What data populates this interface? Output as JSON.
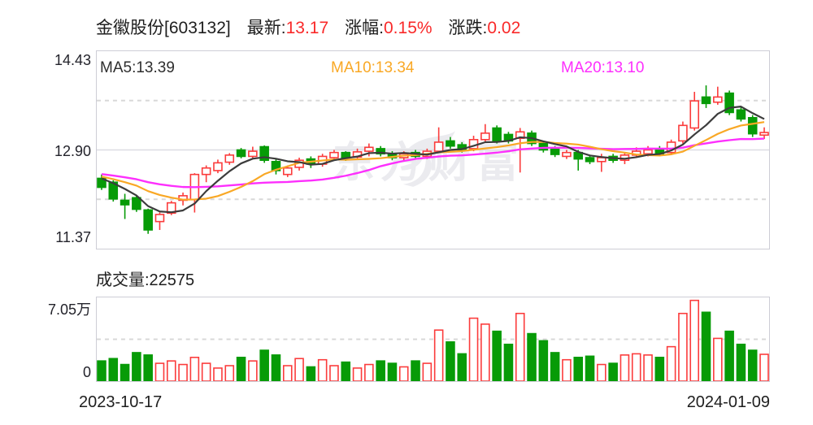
{
  "header": {
    "stock_name": "金徽股份[603132]",
    "latest_label": "最新:",
    "latest_value": "13.17",
    "change_pct_label": "涨幅:",
    "change_pct_value": "0.15%",
    "change_label": "涨跌:",
    "change_value": "0.02"
  },
  "legend": {
    "ma5": "MA5:13.39",
    "ma10": "MA10:13.34",
    "ma20": "MA20:13.10"
  },
  "price_axis": {
    "top": "14.43",
    "mid": "12.90",
    "bottom": "11.37"
  },
  "volume_title": "成交量:22575",
  "volume_axis": {
    "top": "7.05万",
    "bottom": "0"
  },
  "x_axis": {
    "start": "2023-10-17",
    "end": "2024-01-09"
  },
  "watermark": "东方财富",
  "colors": {
    "up": "#fb3b3b",
    "down": "#079b07",
    "ma5": "#3c3c3c",
    "ma10": "#f9a825",
    "ma20": "#fd2ffd",
    "grid": "#d8d8d8",
    "mid_line": "#dddde2",
    "accent_red": "#f92929"
  },
  "chart_data": {
    "type": "candlestick+volume",
    "title": "金徽股份[603132]",
    "latest": 13.17,
    "change_pct": 0.15,
    "change": 0.02,
    "ma_labels": {
      "ma5": 13.39,
      "ma10": 13.34,
      "ma20": 13.1
    },
    "price_range": [
      11.37,
      14.43
    ],
    "price_ticks": [
      14.43,
      12.9,
      11.37
    ],
    "volume_max": 70500,
    "last_volume": 22575,
    "dates": [
      "2023-10-17",
      "2024-01-09"
    ],
    "grid": "dashed-quarters",
    "ma_prehistory": [
      12.6,
      12.59,
      12.58,
      12.57,
      12.56,
      12.56,
      12.55,
      12.55,
      12.54,
      12.54,
      12.53,
      12.52,
      12.52,
      12.51,
      12.5,
      12.5,
      12.5,
      12.49,
      12.48
    ],
    "candles": [
      [
        12.46,
        12.32,
        12.52,
        12.28,
        17000
      ],
      [
        12.4,
        12.14,
        12.43,
        12.1,
        19000
      ],
      [
        12.12,
        12.05,
        12.22,
        11.83,
        14000
      ],
      [
        12.16,
        11.98,
        12.19,
        11.94,
        24000
      ],
      [
        11.97,
        11.66,
        11.99,
        11.6,
        22000
      ],
      [
        11.79,
        11.9,
        11.93,
        11.66,
        15000
      ],
      [
        11.92,
        12.08,
        12.11,
        11.89,
        17000
      ],
      [
        12.12,
        12.19,
        12.24,
        12.04,
        14000
      ],
      [
        12.13,
        12.52,
        12.54,
        11.93,
        20000
      ],
      [
        12.52,
        12.62,
        12.66,
        12.4,
        15000
      ],
      [
        12.58,
        12.7,
        12.75,
        12.54,
        11000
      ],
      [
        12.71,
        12.82,
        12.85,
        12.67,
        13000
      ],
      [
        12.9,
        12.8,
        12.93,
        12.77,
        20000
      ],
      [
        12.8,
        12.88,
        12.95,
        12.76,
        17000
      ],
      [
        12.95,
        12.74,
        12.97,
        12.7,
        26000
      ],
      [
        12.72,
        12.58,
        12.76,
        12.52,
        22000
      ],
      [
        12.52,
        12.62,
        12.66,
        12.48,
        13000
      ],
      [
        12.63,
        12.74,
        12.78,
        12.58,
        19000
      ],
      [
        12.76,
        12.68,
        12.8,
        12.62,
        12000
      ],
      [
        12.68,
        12.8,
        12.84,
        12.64,
        18000
      ],
      [
        12.78,
        12.86,
        12.9,
        12.74,
        13000
      ],
      [
        12.86,
        12.78,
        12.88,
        12.73,
        16000
      ],
      [
        12.79,
        12.87,
        12.92,
        12.76,
        11000
      ],
      [
        12.88,
        12.94,
        13.0,
        12.8,
        14000
      ],
      [
        12.92,
        12.84,
        12.96,
        12.8,
        17000
      ],
      [
        12.84,
        12.78,
        12.88,
        12.74,
        15000
      ],
      [
        12.78,
        12.84,
        12.88,
        12.72,
        12000
      ],
      [
        12.86,
        12.8,
        12.9,
        12.76,
        17000
      ],
      [
        12.8,
        12.88,
        12.92,
        12.76,
        15000
      ],
      [
        12.88,
        13.02,
        13.25,
        12.85,
        43000
      ],
      [
        13.04,
        12.96,
        13.1,
        12.92,
        33000
      ],
      [
        12.98,
        12.9,
        13.02,
        12.86,
        23000
      ],
      [
        12.92,
        13.06,
        13.12,
        12.88,
        53000
      ],
      [
        13.06,
        13.16,
        13.3,
        13.02,
        48000
      ],
      [
        13.24,
        13.04,
        13.28,
        13.0,
        42000
      ],
      [
        13.14,
        13.04,
        13.18,
        13.0,
        31000
      ],
      [
        13.08,
        13.18,
        13.24,
        12.55,
        57000
      ],
      [
        13.16,
        13.0,
        13.2,
        12.96,
        40000
      ],
      [
        13.0,
        12.9,
        13.04,
        12.86,
        34000
      ],
      [
        12.92,
        12.83,
        12.96,
        12.79,
        24000
      ],
      [
        12.8,
        12.86,
        12.9,
        12.76,
        18000
      ],
      [
        12.86,
        12.76,
        12.9,
        12.58,
        20000
      ],
      [
        12.78,
        12.72,
        12.82,
        12.68,
        21000
      ],
      [
        12.72,
        12.78,
        12.84,
        12.56,
        14000
      ],
      [
        12.8,
        12.74,
        12.84,
        12.7,
        15000
      ],
      [
        12.74,
        12.82,
        12.86,
        12.68,
        22000
      ],
      [
        12.82,
        12.88,
        12.94,
        12.78,
        23000
      ],
      [
        12.84,
        12.9,
        12.96,
        12.8,
        22000
      ],
      [
        12.92,
        12.84,
        12.96,
        12.8,
        20000
      ],
      [
        12.86,
        13.02,
        13.06,
        12.82,
        29000
      ],
      [
        13.04,
        13.28,
        13.34,
        13.0,
        57000
      ],
      [
        13.24,
        13.66,
        13.8,
        13.2,
        68000
      ],
      [
        13.72,
        13.62,
        13.9,
        13.55,
        58000
      ],
      [
        13.64,
        13.72,
        13.88,
        13.6,
        36000
      ],
      [
        13.78,
        13.48,
        13.82,
        13.44,
        42000
      ],
      [
        13.52,
        13.38,
        13.56,
        13.34,
        31000
      ],
      [
        13.4,
        13.15,
        13.44,
        13.1,
        26000
      ],
      [
        13.13,
        13.17,
        13.25,
        13.07,
        22575
      ]
    ]
  }
}
